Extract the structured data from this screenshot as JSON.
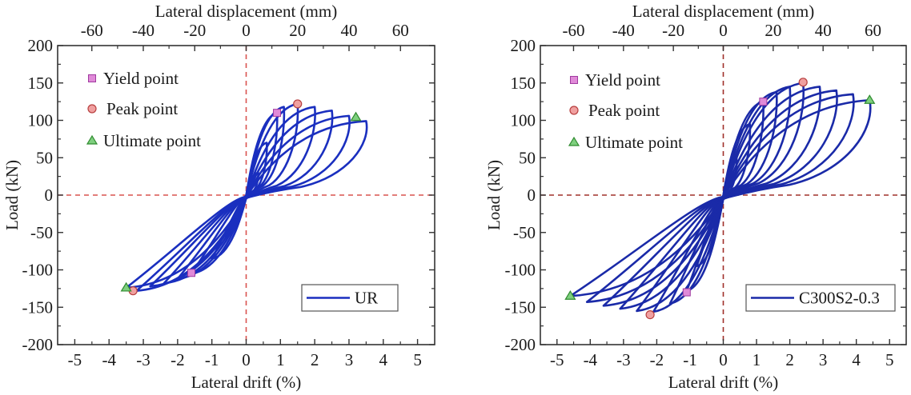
{
  "chart_data": [
    {
      "type": "line",
      "title": "",
      "series_name": "UR",
      "xlabel": "Lateral drift (%)",
      "x2label": "Lateral displacement (mm)",
      "ylabel": "Load (kN)",
      "xlim": [
        -5.5,
        5.5
      ],
      "ylim": [
        -200,
        200
      ],
      "x2lim": [
        -73.3,
        73.3
      ],
      "xticks": [
        -5,
        -4,
        -3,
        -2,
        -1,
        0,
        1,
        2,
        3,
        4,
        5
      ],
      "xtick_labels": [
        "-5",
        "-4",
        "-3",
        "-2",
        "-1",
        "0",
        "1",
        "2",
        "3",
        "4",
        "5"
      ],
      "x2ticks": [
        -60,
        -40,
        -20,
        0,
        20,
        40,
        60
      ],
      "x2tick_labels": [
        "-60",
        "-40",
        "-20",
        "0",
        "20",
        "40",
        "60"
      ],
      "yticks": [
        -200,
        -150,
        -100,
        -50,
        0,
        50,
        100,
        150,
        200
      ],
      "ytick_labels": [
        "-200",
        "-150",
        "-100",
        "-50",
        "0",
        "50",
        "100",
        "150",
        "200"
      ],
      "grid": false,
      "reference_lines": {
        "x": 0,
        "y": 0,
        "style": "dashed",
        "color": "#d9534f"
      },
      "line_color": "#1a2fbf",
      "legend_series_position": "bottom-right",
      "legend_points_position": "top-left",
      "loops": [
        {
          "peak_pos": [
            0.35,
            30
          ],
          "peak_neg": [
            -0.35,
            -30
          ]
        },
        {
          "peak_pos": [
            0.6,
            70
          ],
          "peak_neg": [
            -0.6,
            -55
          ]
        },
        {
          "peak_pos": [
            0.9,
            110
          ],
          "peak_neg": [
            -1.0,
            -85
          ]
        },
        {
          "peak_pos": [
            1.1,
            118
          ],
          "peak_neg": [
            -1.6,
            -105
          ]
        },
        {
          "peak_pos": [
            1.5,
            122
          ],
          "peak_neg": [
            -2.0,
            -112
          ]
        },
        {
          "peak_pos": [
            2.0,
            118
          ],
          "peak_neg": [
            -2.4,
            -118
          ]
        },
        {
          "peak_pos": [
            2.5,
            113
          ],
          "peak_neg": [
            -2.8,
            -122
          ]
        },
        {
          "peak_pos": [
            3.0,
            106
          ],
          "peak_neg": [
            -3.2,
            -128
          ]
        },
        {
          "peak_pos": [
            3.5,
            99
          ],
          "peak_neg": [
            -3.5,
            -124
          ]
        }
      ],
      "points": {
        "yield": [
          {
            "x": 0.9,
            "y": 110
          },
          {
            "x": -1.6,
            "y": -104
          }
        ],
        "peak": [
          {
            "x": 1.5,
            "y": 122
          },
          {
            "x": -3.3,
            "y": -128
          }
        ],
        "ultimate": [
          {
            "x": 3.2,
            "y": 104
          },
          {
            "x": -3.5,
            "y": -124
          }
        ]
      }
    },
    {
      "type": "line",
      "title": "",
      "series_name": "C300S2-0.3",
      "xlabel": "Lateral drift (%)",
      "x2label": "Lateral displacement (mm)",
      "ylabel": "Load (kN)",
      "xlim": [
        -5.5,
        5.5
      ],
      "ylim": [
        -200,
        200
      ],
      "x2lim": [
        -73.3,
        73.3
      ],
      "xticks": [
        -5,
        -4,
        -3,
        -2,
        -1,
        0,
        1,
        2,
        3,
        4,
        5
      ],
      "xtick_labels": [
        "-5",
        "-4",
        "-3",
        "-2",
        "-1",
        "0",
        "1",
        "2",
        "3",
        "4",
        "5"
      ],
      "x2ticks": [
        -60,
        -40,
        -20,
        0,
        20,
        40,
        60
      ],
      "x2tick_labels": [
        "-60",
        "-40",
        "-20",
        "0",
        "20",
        "40",
        "60"
      ],
      "yticks": [
        -200,
        -150,
        -100,
        -50,
        0,
        50,
        100,
        150,
        200
      ],
      "ytick_labels": [
        "-200",
        "-150",
        "-100",
        "-50",
        "0",
        "50",
        "100",
        "150",
        "200"
      ],
      "grid": false,
      "reference_lines": {
        "x": 0,
        "y": 0,
        "style": "dashed",
        "color": "#a0302a"
      },
      "line_color": "#1a2aa8",
      "legend_series_position": "bottom-right",
      "legend_points_position": "top-left",
      "loops": [
        {
          "peak_pos": [
            0.4,
            50
          ],
          "peak_neg": [
            -0.4,
            -45
          ]
        },
        {
          "peak_pos": [
            0.8,
            95
          ],
          "peak_neg": [
            -0.8,
            -95
          ]
        },
        {
          "peak_pos": [
            1.2,
            125
          ],
          "peak_neg": [
            -1.1,
            -128
          ]
        },
        {
          "peak_pos": [
            1.6,
            138
          ],
          "peak_neg": [
            -1.6,
            -145
          ]
        },
        {
          "peak_pos": [
            2.0,
            145
          ],
          "peak_neg": [
            -2.1,
            -156
          ]
        },
        {
          "peak_pos": [
            2.4,
            150
          ],
          "peak_neg": [
            -2.6,
            -155
          ]
        },
        {
          "peak_pos": [
            2.9,
            145
          ],
          "peak_neg": [
            -3.1,
            -152
          ]
        },
        {
          "peak_pos": [
            3.4,
            140
          ],
          "peak_neg": [
            -3.6,
            -148
          ]
        },
        {
          "peak_pos": [
            3.9,
            135
          ],
          "peak_neg": [
            -4.1,
            -143
          ]
        },
        {
          "peak_pos": [
            4.4,
            127
          ],
          "peak_neg": [
            -4.6,
            -135
          ]
        }
      ],
      "points": {
        "yield": [
          {
            "x": 1.2,
            "y": 125
          },
          {
            "x": -1.1,
            "y": -130
          }
        ],
        "peak": [
          {
            "x": 2.4,
            "y": 151
          },
          {
            "x": -2.2,
            "y": -160
          }
        ],
        "ultimate": [
          {
            "x": 4.4,
            "y": 127
          },
          {
            "x": -4.6,
            "y": -135
          }
        ]
      }
    }
  ],
  "legend": {
    "yield_label": "Yield point",
    "peak_label": "Peak point",
    "ultimate_label": "Ultimate point",
    "yield_color": "#e08ad8",
    "peak_color": "#f0a0a0",
    "ultimate_color": "#7ecf7e"
  }
}
